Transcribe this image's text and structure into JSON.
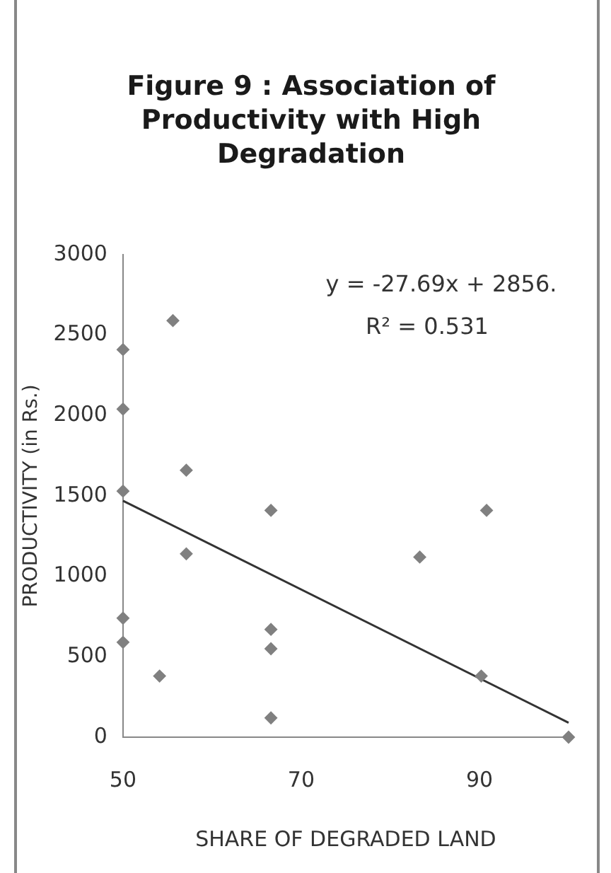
{
  "chart_data": {
    "type": "scatter",
    "title": "Figure 9 : Association of Productivity with High Degradation",
    "xlabel": "SHARE OF DEGRADED LAND",
    "ylabel": "PRODUCTIVITY (in Rs.)",
    "annotations": [
      "y = -27.69x + 2856.",
      "R² = 0.531"
    ],
    "grid": false,
    "legend": false,
    "xlim": [
      50,
      100
    ],
    "xticks": [
      50,
      70,
      90
    ],
    "ylim": [
      0,
      3000
    ],
    "yticks": [
      0,
      500,
      1000,
      1500,
      2000,
      2500,
      3000
    ],
    "series": [
      {
        "marker": "diamond",
        "color": "#808080",
        "x": [
          50,
          50,
          50,
          50,
          50,
          55.6,
          57.1,
          57.1,
          54.1,
          66.6,
          66.6,
          66.6,
          66.6,
          83.3,
          90.8,
          90.2,
          100
        ],
        "values": [
          2410,
          2040,
          1530,
          740,
          590,
          2590,
          1660,
          1140,
          380,
          1410,
          670,
          550,
          120,
          1120,
          1410,
          380,
          0
        ]
      },
      {
        "type": "line",
        "marker": "none",
        "color": "#333333",
        "x": [
          50,
          100
        ],
        "values": [
          1470,
          90
        ]
      }
    ]
  }
}
